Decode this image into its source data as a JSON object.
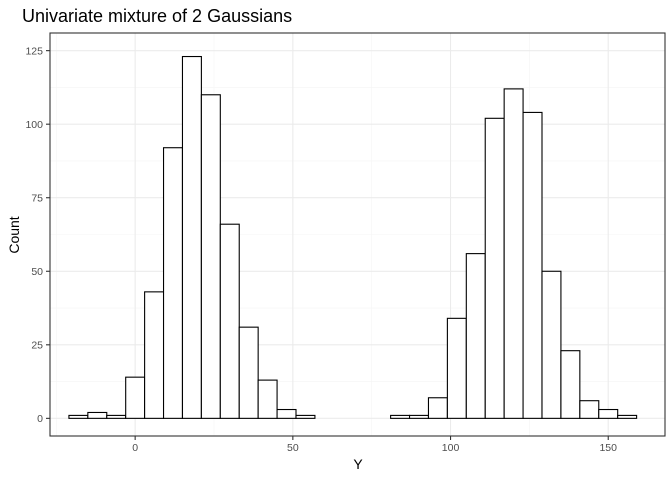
{
  "chart_data": {
    "type": "bar",
    "title": "Univariate mixture of 2 Gaussians",
    "xlabel": "Y",
    "ylabel": "Count",
    "xlim": [
      -27,
      168
    ],
    "ylim": [
      -6,
      131
    ],
    "bin_width": 6,
    "x_ticks": [
      0,
      50,
      100,
      150
    ],
    "y_ticks": [
      0,
      25,
      50,
      75,
      100,
      125
    ],
    "x_tick_labels": [
      "0",
      "50",
      "100",
      "150"
    ],
    "y_tick_labels": [
      "0",
      "25",
      "50",
      "75",
      "100",
      "125"
    ],
    "grid": true,
    "bins": [
      {
        "x": -18,
        "count": 1
      },
      {
        "x": -12,
        "count": 2
      },
      {
        "x": -6,
        "count": 1
      },
      {
        "x": 0,
        "count": 14
      },
      {
        "x": 6,
        "count": 43
      },
      {
        "x": 12,
        "count": 92
      },
      {
        "x": 18,
        "count": 123
      },
      {
        "x": 24,
        "count": 110
      },
      {
        "x": 30,
        "count": 66
      },
      {
        "x": 36,
        "count": 31
      },
      {
        "x": 42,
        "count": 13
      },
      {
        "x": 48,
        "count": 3
      },
      {
        "x": 54,
        "count": 1
      },
      {
        "x": 60,
        "count": 0
      },
      {
        "x": 66,
        "count": 0
      },
      {
        "x": 72,
        "count": 0
      },
      {
        "x": 78,
        "count": 0
      },
      {
        "x": 84,
        "count": 1
      },
      {
        "x": 90,
        "count": 1
      },
      {
        "x": 96,
        "count": 7
      },
      {
        "x": 102,
        "count": 34
      },
      {
        "x": 108,
        "count": 56
      },
      {
        "x": 114,
        "count": 102
      },
      {
        "x": 120,
        "count": 112
      },
      {
        "x": 126,
        "count": 104
      },
      {
        "x": 132,
        "count": 50
      },
      {
        "x": 138,
        "count": 23
      },
      {
        "x": 144,
        "count": 6
      },
      {
        "x": 150,
        "count": 3
      },
      {
        "x": 156,
        "count": 1
      }
    ],
    "colors": {
      "bar_fill": "#ffffff",
      "bar_stroke": "#000000",
      "panel_border": "#333333",
      "grid_major": "#ebebeb",
      "grid_minor": "#f5f5f5",
      "tick": "#333333",
      "tick_label": "#4d4d4d"
    }
  }
}
